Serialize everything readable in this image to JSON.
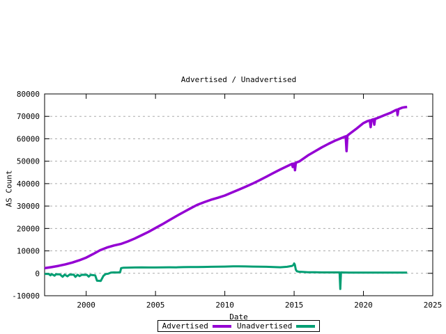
{
  "chart_data": {
    "type": "line",
    "title": "Advertised / Unadvertised",
    "xlabel": "Date",
    "ylabel": "AS Count",
    "xlim": [
      1997,
      2025
    ],
    "ylim": [
      -10000,
      80000
    ],
    "xticks": [
      2000,
      2005,
      2010,
      2015,
      2020,
      2025
    ],
    "yticks": [
      -10000,
      0,
      10000,
      20000,
      30000,
      40000,
      50000,
      60000,
      70000,
      80000
    ],
    "grid": "horizontal-dashed",
    "legend_position": "bottom-center-outside-boxed",
    "colors": {
      "background": "#ffffff",
      "border": "#000000",
      "grid": "#aaaaaa",
      "advertised": "#9400d3",
      "unadvertised": "#009e73"
    },
    "series": [
      {
        "name": "Advertised",
        "color": "#9400d3",
        "linewidth": 3.5,
        "points": [
          [
            1997.0,
            2300
          ],
          [
            1997.5,
            2750
          ],
          [
            1998.0,
            3300
          ],
          [
            1998.5,
            4000
          ],
          [
            1999.0,
            4800
          ],
          [
            1999.5,
            5800
          ],
          [
            2000.0,
            7000
          ],
          [
            2000.5,
            8600
          ],
          [
            2001.0,
            10300
          ],
          [
            2001.5,
            11500
          ],
          [
            2002.0,
            12400
          ],
          [
            2002.5,
            13100
          ],
          [
            2003.0,
            14200
          ],
          [
            2003.5,
            15500
          ],
          [
            2004.0,
            17000
          ],
          [
            2004.5,
            18500
          ],
          [
            2005.0,
            20200
          ],
          [
            2005.5,
            21900
          ],
          [
            2006.0,
            23700
          ],
          [
            2006.5,
            25500
          ],
          [
            2007.0,
            27200
          ],
          [
            2007.5,
            28900
          ],
          [
            2008.0,
            30500
          ],
          [
            2008.5,
            31700
          ],
          [
            2009.0,
            32800
          ],
          [
            2009.5,
            33700
          ],
          [
            2010.0,
            34700
          ],
          [
            2010.5,
            36000
          ],
          [
            2011.0,
            37300
          ],
          [
            2011.5,
            38600
          ],
          [
            2012.0,
            40000
          ],
          [
            2012.5,
            41500
          ],
          [
            2013.0,
            43100
          ],
          [
            2013.5,
            44700
          ],
          [
            2014.0,
            46300
          ],
          [
            2014.5,
            47800
          ],
          [
            2014.85,
            48800
          ],
          [
            2014.9,
            47400
          ],
          [
            2014.95,
            48900
          ],
          [
            2015.02,
            49000
          ],
          [
            2015.06,
            46000
          ],
          [
            2015.12,
            49300
          ],
          [
            2015.4,
            50000
          ],
          [
            2016.0,
            52600
          ],
          [
            2016.5,
            54400
          ],
          [
            2017.0,
            56200
          ],
          [
            2017.5,
            57800
          ],
          [
            2018.0,
            59300
          ],
          [
            2018.4,
            60300
          ],
          [
            2018.72,
            61100
          ],
          [
            2018.78,
            54500
          ],
          [
            2018.84,
            61400
          ],
          [
            2019.0,
            62200
          ],
          [
            2019.5,
            64500
          ],
          [
            2020.0,
            67000
          ],
          [
            2020.3,
            67900
          ],
          [
            2020.46,
            68200
          ],
          [
            2020.52,
            65200
          ],
          [
            2020.58,
            68400
          ],
          [
            2020.72,
            68700
          ],
          [
            2020.78,
            66300
          ],
          [
            2020.84,
            68900
          ],
          [
            2021.0,
            69200
          ],
          [
            2021.5,
            70500
          ],
          [
            2022.0,
            71700
          ],
          [
            2022.3,
            72700
          ],
          [
            2022.42,
            73000
          ],
          [
            2022.46,
            70700
          ],
          [
            2022.52,
            73200
          ],
          [
            2022.8,
            73900
          ],
          [
            2023.0,
            74100
          ],
          [
            2023.15,
            74200
          ]
        ]
      },
      {
        "name": "Unadvertised",
        "color": "#009e73",
        "linewidth": 3,
        "points": [
          [
            1997.0,
            -250
          ],
          [
            1997.3,
            -300
          ],
          [
            1997.42,
            -900
          ],
          [
            1997.52,
            -350
          ],
          [
            1997.72,
            -1050
          ],
          [
            1997.82,
            -400
          ],
          [
            1998.1,
            -450
          ],
          [
            1998.3,
            -1550
          ],
          [
            1998.45,
            -550
          ],
          [
            1998.65,
            -1350
          ],
          [
            1998.8,
            -550
          ],
          [
            1999.1,
            -600
          ],
          [
            1999.22,
            -1600
          ],
          [
            1999.38,
            -650
          ],
          [
            1999.52,
            -1250
          ],
          [
            1999.68,
            -650
          ],
          [
            2000.05,
            -700
          ],
          [
            2000.18,
            -1500
          ],
          [
            2000.32,
            -700
          ],
          [
            2000.65,
            -900
          ],
          [
            2000.78,
            -3300
          ],
          [
            2001.05,
            -3400
          ],
          [
            2001.25,
            -1100
          ],
          [
            2001.4,
            -350
          ],
          [
            2001.6,
            -150
          ],
          [
            2001.78,
            300
          ],
          [
            2002.0,
            400
          ],
          [
            2002.25,
            350
          ],
          [
            2002.45,
            450
          ],
          [
            2002.52,
            2300
          ],
          [
            2002.7,
            2500
          ],
          [
            2003.0,
            2550
          ],
          [
            2003.5,
            2600
          ],
          [
            2004.0,
            2650
          ],
          [
            2004.5,
            2600
          ],
          [
            2005.0,
            2600
          ],
          [
            2005.5,
            2650
          ],
          [
            2006.0,
            2700
          ],
          [
            2006.5,
            2650
          ],
          [
            2007.0,
            2750
          ],
          [
            2007.5,
            2800
          ],
          [
            2008.0,
            2800
          ],
          [
            2008.5,
            2850
          ],
          [
            2009.0,
            2900
          ],
          [
            2009.5,
            2950
          ],
          [
            2010.0,
            3000
          ],
          [
            2010.6,
            3100
          ],
          [
            2011.0,
            3100
          ],
          [
            2011.5,
            3050
          ],
          [
            2012.0,
            3000
          ],
          [
            2012.5,
            2950
          ],
          [
            2013.0,
            2900
          ],
          [
            2013.5,
            2800
          ],
          [
            2014.0,
            2700
          ],
          [
            2014.5,
            2900
          ],
          [
            2014.85,
            3300
          ],
          [
            2014.95,
            3700
          ],
          [
            2015.0,
            4400
          ],
          [
            2015.05,
            3800
          ],
          [
            2015.12,
            1600
          ],
          [
            2015.2,
            900
          ],
          [
            2015.35,
            700
          ],
          [
            2015.6,
            600
          ],
          [
            2016.0,
            500
          ],
          [
            2016.5,
            450
          ],
          [
            2017.0,
            400
          ],
          [
            2017.5,
            400
          ],
          [
            2018.0,
            400
          ],
          [
            2018.28,
            400
          ],
          [
            2018.33,
            -7000
          ],
          [
            2018.38,
            400
          ],
          [
            2018.6,
            350
          ],
          [
            2019.0,
            300
          ],
          [
            2019.5,
            300
          ],
          [
            2020.0,
            300
          ],
          [
            2020.5,
            300
          ],
          [
            2021.0,
            300
          ],
          [
            2021.5,
            300
          ],
          [
            2022.0,
            300
          ],
          [
            2022.5,
            300
          ],
          [
            2023.0,
            300
          ],
          [
            2023.15,
            300
          ]
        ]
      }
    ]
  }
}
